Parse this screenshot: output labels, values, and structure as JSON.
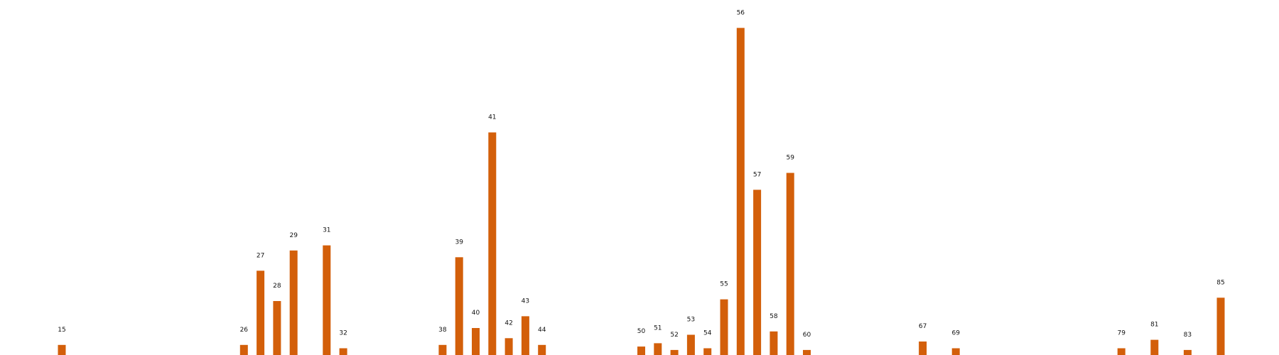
{
  "chart_data": {
    "type": "bar",
    "bar_color": "#d35f0a",
    "grid": false,
    "axes_visible": false,
    "ylim": [
      0,
      100
    ],
    "bars": [
      {
        "x": 15,
        "label": "15",
        "value": 3
      },
      {
        "x": 26,
        "label": "26",
        "value": 3
      },
      {
        "x": 27,
        "label": "27",
        "value": 25
      },
      {
        "x": 28,
        "label": "28",
        "value": 16
      },
      {
        "x": 29,
        "label": "29",
        "value": 31
      },
      {
        "x": 31,
        "label": "31",
        "value": 32.5
      },
      {
        "x": 32,
        "label": "32",
        "value": 2
      },
      {
        "x": 38,
        "label": "38",
        "value": 3
      },
      {
        "x": 39,
        "label": "39",
        "value": 29
      },
      {
        "x": 40,
        "label": "40",
        "value": 8
      },
      {
        "x": 41,
        "label": "41",
        "value": 66
      },
      {
        "x": 42,
        "label": "42",
        "value": 5
      },
      {
        "x": 43,
        "label": "43",
        "value": 11.5
      },
      {
        "x": 44,
        "label": "44",
        "value": 3
      },
      {
        "x": 50,
        "label": "50",
        "value": 2.5
      },
      {
        "x": 51,
        "label": "51",
        "value": 3.5
      },
      {
        "x": 52,
        "label": "52",
        "value": 1.5
      },
      {
        "x": 53,
        "label": "53",
        "value": 6
      },
      {
        "x": 54,
        "label": "54",
        "value": 2
      },
      {
        "x": 55,
        "label": "55",
        "value": 16.5
      },
      {
        "x": 56,
        "label": "56",
        "value": 97
      },
      {
        "x": 57,
        "label": "57",
        "value": 49
      },
      {
        "x": 58,
        "label": "58",
        "value": 7
      },
      {
        "x": 59,
        "label": "59",
        "value": 54
      },
      {
        "x": 60,
        "label": "60",
        "value": 1.5
      },
      {
        "x": 67,
        "label": "67",
        "value": 4
      },
      {
        "x": 69,
        "label": "69",
        "value": 2
      },
      {
        "x": 79,
        "label": "79",
        "value": 2
      },
      {
        "x": 81,
        "label": "81",
        "value": 4.5
      },
      {
        "x": 83,
        "label": "83",
        "value": 1.5
      },
      {
        "x": 85,
        "label": "85",
        "value": 17
      }
    ]
  }
}
